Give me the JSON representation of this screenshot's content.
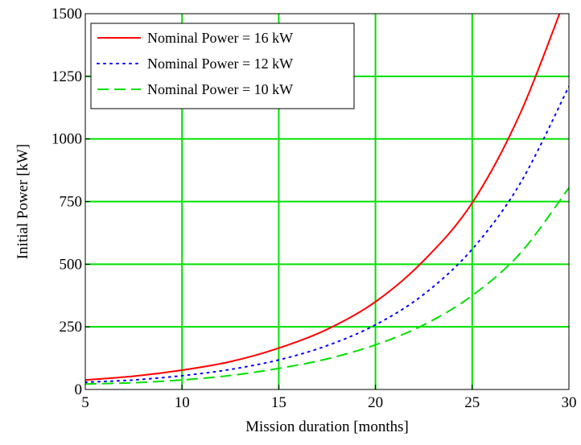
{
  "chart_data": {
    "type": "line",
    "title": "",
    "xlabel": "Mission duration [months]",
    "ylabel": "Initial Power [kW]",
    "xlim": [
      5,
      30
    ],
    "ylim": [
      0,
      1500
    ],
    "x_ticks": [
      5,
      10,
      15,
      20,
      25,
      30
    ],
    "y_ticks": [
      0,
      250,
      500,
      750,
      1000,
      1250,
      1500
    ],
    "x_tick_labels": [
      "5",
      "10",
      "15",
      "20",
      "25",
      "30"
    ],
    "y_tick_labels": [
      "0",
      "250",
      "500",
      "750",
      "1000",
      "1250",
      "1500"
    ],
    "grid": true,
    "grid_color": "#00e000",
    "legend_position": "top-left",
    "x": [
      5,
      7.5,
      10,
      12.5,
      15,
      17.5,
      20,
      22.5,
      25,
      27.5,
      30
    ],
    "series": [
      {
        "name": "Nominal Power = 16 kW",
        "color": "#ff0000",
        "style": "solid",
        "values": [
          38,
          53,
          77,
          111,
          165,
          240,
          350,
          515,
          745,
          1105,
          1600
        ]
      },
      {
        "name": "Nominal Power = 12 kW",
        "color": "#0000ff",
        "style": "dotted",
        "values": [
          29,
          38,
          55,
          80,
          118,
          175,
          258,
          380,
          560,
          825,
          1210
        ]
      },
      {
        "name": "Nominal Power = 10 kW",
        "color": "#00e000",
        "style": "dashed",
        "values": [
          22,
          27,
          38,
          56,
          84,
          122,
          178,
          258,
          375,
          545,
          805
        ]
      }
    ]
  }
}
